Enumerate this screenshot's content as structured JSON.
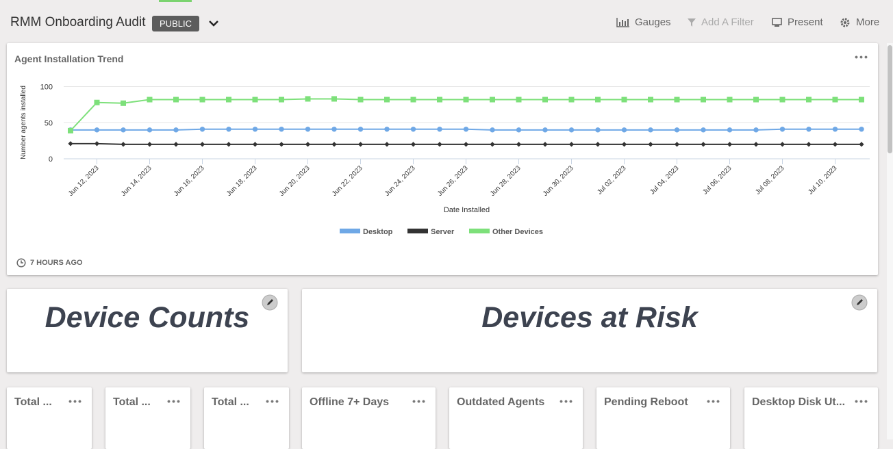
{
  "header": {
    "title": "RMM Onboarding Audit",
    "badge": "PUBLIC",
    "actions": [
      "Gauges",
      "Add A Filter",
      "Present",
      "More"
    ]
  },
  "chart_card": {
    "updated": "7 HOURS AGO"
  },
  "chart_data": {
    "type": "line",
    "title": "Agent Installation Trend",
    "xlabel": "Date Installed",
    "ylabel": "Number agents installed",
    "x": [
      "2023-06-11",
      "2023-06-12",
      "2023-06-13",
      "2023-06-14",
      "2023-06-15",
      "2023-06-16",
      "2023-06-17",
      "2023-06-18",
      "2023-06-19",
      "2023-06-20",
      "2023-06-21",
      "2023-06-22",
      "2023-06-23",
      "2023-06-24",
      "2023-06-25",
      "2023-06-26",
      "2023-06-27",
      "2023-06-28",
      "2023-06-29",
      "2023-06-30",
      "2023-07-01",
      "2023-07-02",
      "2023-07-03",
      "2023-07-04",
      "2023-07-05",
      "2023-07-06",
      "2023-07-07",
      "2023-07-08",
      "2023-07-09",
      "2023-07-10",
      "2023-07-11"
    ],
    "xlim": [
      "2023-06-11",
      "2023-07-11"
    ],
    "xticks": [
      {
        "value": "2023-06-12",
        "label": "Jun 12, 2023"
      },
      {
        "value": "2023-06-14",
        "label": "Jun 14, 2023"
      },
      {
        "value": "2023-06-16",
        "label": "Jun 16, 2023"
      },
      {
        "value": "2023-06-18",
        "label": "Jun 18, 2023"
      },
      {
        "value": "2023-06-20",
        "label": "Jun 20, 2023"
      },
      {
        "value": "2023-06-22",
        "label": "Jun 22, 2023"
      },
      {
        "value": "2023-06-24",
        "label": "Jun 24, 2023"
      },
      {
        "value": "2023-06-26",
        "label": "Jun 26, 2023"
      },
      {
        "value": "2023-06-28",
        "label": "Jun 28, 2023"
      },
      {
        "value": "2023-06-30",
        "label": "Jun 30, 2023"
      },
      {
        "value": "2023-07-02",
        "label": "Jul 02, 2023"
      },
      {
        "value": "2023-07-04",
        "label": "Jul 04, 2023"
      },
      {
        "value": "2023-07-06",
        "label": "Jul 06, 2023"
      },
      {
        "value": "2023-07-08",
        "label": "Jul 08, 2023"
      },
      {
        "value": "2023-07-10",
        "label": "Jul 10, 2023"
      }
    ],
    "ylim": [
      0,
      110
    ],
    "yticks": [
      0,
      50,
      100
    ],
    "grid": true,
    "series": [
      {
        "name": "Desktop",
        "color": "#6fa8e6",
        "marker": "circle",
        "values": [
          40,
          40,
          40,
          40,
          40,
          41,
          41,
          41,
          41,
          41,
          41,
          41,
          41,
          41,
          41,
          41,
          40,
          40,
          40,
          40,
          40,
          40,
          40,
          40,
          40,
          40,
          40,
          41,
          41,
          41,
          41
        ]
      },
      {
        "name": "Server",
        "color": "#333333",
        "marker": "diamond",
        "values": [
          21,
          21,
          20,
          20,
          20,
          20,
          20,
          20,
          20,
          20,
          20,
          20,
          20,
          20,
          20,
          20,
          20,
          20,
          20,
          20,
          20,
          20,
          20,
          20,
          20,
          20,
          20,
          20,
          20,
          20,
          20
        ]
      },
      {
        "name": "Other Devices",
        "color": "#7de07a",
        "marker": "square",
        "values": [
          39,
          78,
          77,
          82,
          82,
          82,
          82,
          82,
          82,
          83,
          83,
          82,
          82,
          82,
          82,
          82,
          82,
          82,
          82,
          82,
          82,
          82,
          82,
          82,
          82,
          82,
          82,
          82,
          82,
          82,
          82
        ]
      }
    ]
  },
  "sections": [
    "Device Counts",
    "Devices at Risk"
  ],
  "tiles": [
    "Total ...",
    "Total ...",
    "Total ...",
    "Offline 7+ Days",
    "Outdated Agents",
    "Pending Reboot",
    "Desktop Disk Ut..."
  ]
}
